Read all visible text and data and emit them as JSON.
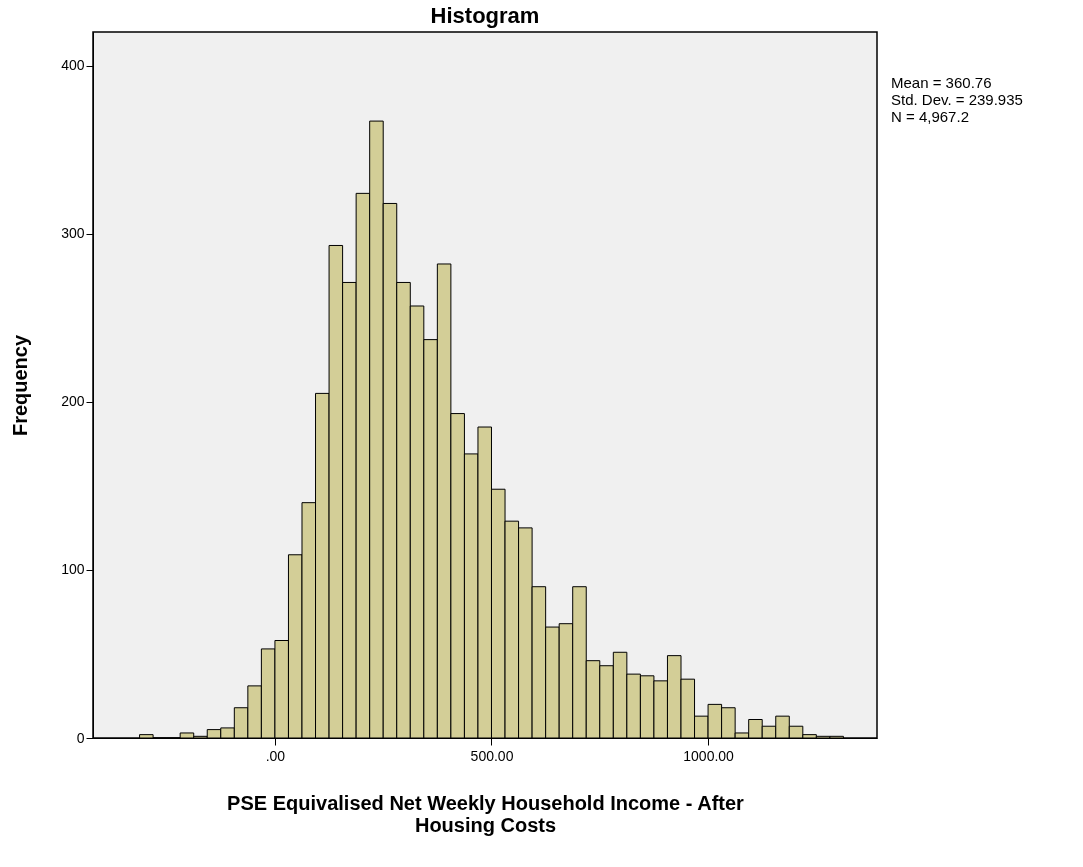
{
  "chart_data": {
    "type": "histogram",
    "title": "Histogram",
    "xlabel": "PSE Equivalised Net Weekly Household Income - After Housing Costs",
    "ylabel": "Frequency",
    "bins": [
      -312.5,
      -281.25,
      -250,
      -218.75,
      -187.5,
      -156.25,
      -125,
      -93.75,
      -62.5,
      -31.25,
      0,
      31.25,
      62.5,
      93.75,
      125,
      156.25,
      187.5,
      218.75,
      250,
      281.25,
      312.5,
      343.75,
      375,
      406.25,
      437.5,
      468.75,
      500,
      531.25,
      562.5,
      593.75,
      625,
      656.25,
      687.5,
      718.75,
      750,
      781.25,
      812.5,
      843.75,
      875,
      906.25,
      937.5,
      968.75,
      1000,
      1031.25,
      1062.5,
      1093.75,
      1125,
      1156.25,
      1187.5,
      1218.75,
      1250,
      1281.25,
      1312.5
    ],
    "values": [
      2,
      0,
      0,
      3,
      1,
      5,
      6,
      18,
      31,
      53,
      58,
      109,
      140,
      205,
      293,
      271,
      324,
      367,
      318,
      271,
      257,
      237,
      282,
      193,
      169,
      185,
      148,
      129,
      125,
      90,
      66,
      68,
      90,
      46,
      43,
      51,
      38,
      37,
      34,
      49,
      35,
      13,
      20,
      18,
      3,
      11,
      7,
      13,
      7,
      2,
      1,
      1
    ],
    "color": "#d3ce97",
    "xlim": [
      -420,
      1390
    ],
    "ylim": [
      0,
      420
    ],
    "xticks": [
      {
        "value": 0,
        "label": ".00"
      },
      {
        "value": 500,
        "label": "500.00"
      },
      {
        "value": 1000,
        "label": "1000.00"
      }
    ],
    "yticks": [
      0,
      100,
      200,
      300,
      400
    ],
    "grid": false,
    "annotations": [
      "Mean = 360.76",
      "Std. Dev. = 239.935",
      "N = 4,967.2"
    ]
  }
}
